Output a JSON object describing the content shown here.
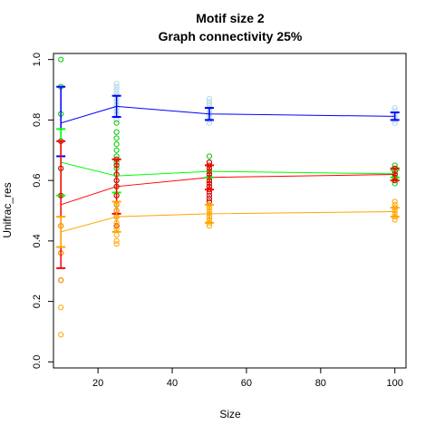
{
  "chart_data": {
    "type": "scatter",
    "title": "Motif size 2",
    "subtitle": "Graph connectivity 25%",
    "xlabel": "Size",
    "ylabel": "Unifrac_res",
    "xlim": [
      8,
      103
    ],
    "ylim": [
      -0.02,
      1.02
    ],
    "x_ticks": [
      20,
      40,
      60,
      80,
      100
    ],
    "x_tick_labels": [
      "20",
      "40",
      "60",
      "80",
      "100"
    ],
    "y_ticks": [
      0.0,
      0.2,
      0.4,
      0.6,
      0.8,
      1.0
    ],
    "y_tick_labels": [
      "0.0",
      "0.2",
      "0.4",
      "0.6",
      "0.8",
      "1.0"
    ],
    "grid": false,
    "legend": "none",
    "x": [
      10,
      25,
      50,
      100
    ],
    "series": [
      {
        "color": "#0000ff",
        "point_color": "#add8e6",
        "means": [
          0.79,
          0.845,
          0.82,
          0.812
        ],
        "error_low": [
          0.68,
          0.81,
          0.8,
          0.8
        ],
        "error_high": [
          0.91,
          0.88,
          0.84,
          0.825
        ],
        "points": [
          [
            0.73,
            0.82,
            0.91
          ],
          [
            0.8,
            0.82,
            0.83,
            0.84,
            0.85,
            0.86,
            0.87,
            0.88,
            0.89,
            0.9,
            0.91,
            0.92
          ],
          [
            0.79,
            0.8,
            0.81,
            0.82,
            0.83,
            0.84,
            0.85,
            0.86,
            0.87
          ],
          [
            0.79,
            0.8,
            0.81,
            0.82,
            0.83,
            0.84
          ]
        ]
      },
      {
        "color": "#00ff00",
        "point_color": "#00cc00",
        "means": [
          0.66,
          0.615,
          0.63,
          0.622
        ],
        "error_low": [
          0.55,
          0.56,
          0.61,
          0.61
        ],
        "error_high": [
          0.77,
          0.67,
          0.65,
          0.635
        ],
        "points": [
          [
            0.55,
            0.64,
            0.73,
            0.82,
            0.91,
            1.0
          ],
          [
            0.52,
            0.55,
            0.58,
            0.6,
            0.62,
            0.64,
            0.66,
            0.68,
            0.7,
            0.72,
            0.74,
            0.76,
            0.79
          ],
          [
            0.58,
            0.6,
            0.62,
            0.64,
            0.66,
            0.68
          ],
          [
            0.59,
            0.6,
            0.61,
            0.62,
            0.63,
            0.64,
            0.65
          ]
        ]
      },
      {
        "color": "#ff0000",
        "point_color": "#cc0000",
        "means": [
          0.52,
          0.58,
          0.61,
          0.62
        ],
        "error_low": [
          0.31,
          0.49,
          0.57,
          0.6
        ],
        "error_high": [
          0.73,
          0.67,
          0.65,
          0.64
        ],
        "points": [
          [
            0.27,
            0.36,
            0.45,
            0.55,
            0.64,
            0.73
          ],
          [
            0.45,
            0.48,
            0.5,
            0.52,
            0.55,
            0.58,
            0.6,
            0.62,
            0.65,
            0.67
          ],
          [
            0.53,
            0.54,
            0.55,
            0.56,
            0.57,
            0.58,
            0.59,
            0.6,
            0.61,
            0.62,
            0.63,
            0.64,
            0.65,
            0.66
          ],
          [
            0.6,
            0.61,
            0.62,
            0.63,
            0.64
          ]
        ]
      },
      {
        "color": "#ffa500",
        "point_color": "#ffa500",
        "means": [
          0.43,
          0.48,
          0.49,
          0.497
        ],
        "error_low": [
          0.38,
          0.43,
          0.46,
          0.48
        ],
        "error_high": [
          0.48,
          0.53,
          0.52,
          0.51
        ],
        "points": [
          [
            0.09,
            0.18,
            0.27,
            0.36,
            0.45
          ],
          [
            0.39,
            0.4,
            0.42,
            0.44,
            0.46,
            0.48,
            0.5,
            0.52
          ],
          [
            0.45,
            0.46,
            0.47,
            0.48,
            0.49,
            0.5,
            0.51,
            0.52
          ],
          [
            0.47,
            0.48,
            0.49,
            0.5,
            0.51,
            0.52,
            0.53
          ]
        ]
      }
    ]
  }
}
